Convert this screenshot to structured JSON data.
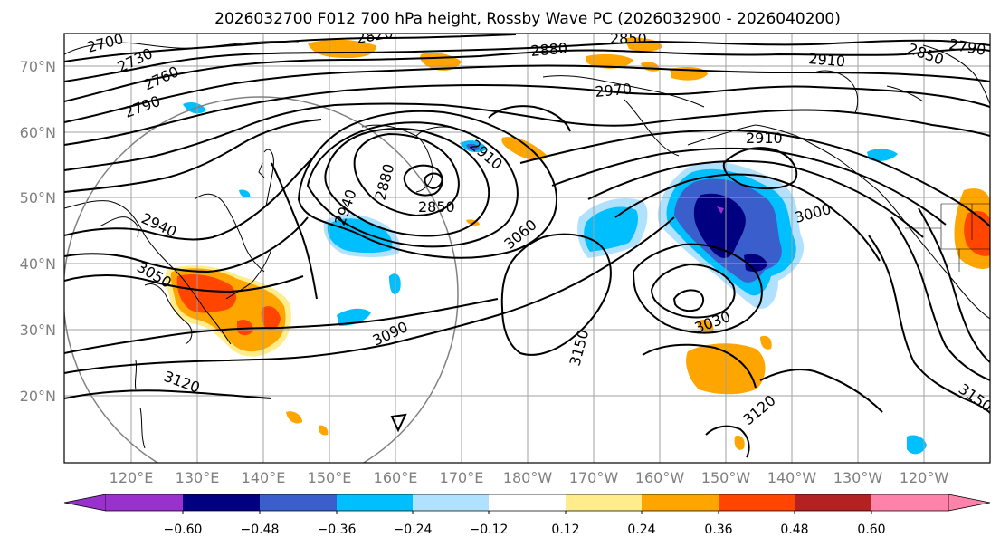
{
  "title": "2026032700 F012 700 hPa height, Rossby Wave PC (2026032900 - 2026040200)",
  "lat_labels": [
    "70°N",
    "60°N",
    "50°N",
    "40°N",
    "30°N",
    "20°N"
  ],
  "lon_labels": [
    "120°E",
    "130°E",
    "140°E",
    "150°E",
    "160°E",
    "170°E",
    "180°W",
    "170°W",
    "160°W",
    "150°W",
    "140°W",
    "130°W",
    "120°W"
  ],
  "colorbar": {
    "ticks": [
      "−0.60",
      "−0.48",
      "−0.36",
      "−0.24",
      "−0.12",
      "0.12",
      "0.24",
      "0.36",
      "0.48",
      "0.60"
    ],
    "colors": {
      "under": "#9932cc",
      "c1": "#000080",
      "c2": "#3a5fcd",
      "c3": "#00bfff",
      "c4": "#b0e2ff",
      "c5": "#ffffff",
      "c6": "#ffec8b",
      "c7": "#ffa500",
      "c8": "#ff4500",
      "c9": "#b22222",
      "over": "#ff82ab"
    }
  },
  "contour_labels": {
    "l2700": "2700",
    "l2730": "2730",
    "l2760": "2760",
    "l2790": "2790",
    "l2880": "2880",
    "l2850a": "2850",
    "l2910a": "2910",
    "l2820": "2820",
    "l2970": "2970",
    "l2910b": "2910",
    "l2910c": "2910",
    "l2880b": "2880",
    "l2850b": "2850",
    "l2940a": "2940",
    "l2940b": "2940",
    "l3060": "3060",
    "l3000": "3000",
    "l3050": "3050",
    "l3090": "3090",
    "l3030": "3030",
    "l3150a": "3150",
    "l3120a": "3120",
    "l3120b": "3120",
    "l3150b": "3150",
    "l2850c": "2850",
    "l2790b": "2790"
  }
}
